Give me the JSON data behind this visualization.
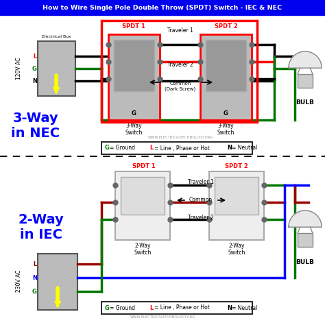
{
  "title": "How to Wire Single Pole Double Throw (SPDT) Switch - IEC & NEC",
  "title_bg": "#0000EE",
  "title_color": "#FFFFFF",
  "bg_color": "#FFFFFF",
  "colors": {
    "black": "#000000",
    "red": "#FF0000",
    "green": "#22AA00",
    "darkgreen": "#007700",
    "yellow": "#FFFF00",
    "blue": "#0000FF",
    "darkred": "#8B0000",
    "maroon": "#990000",
    "gray": "#888888",
    "lightgray": "#CCCCCC",
    "midgray": "#AAAAAA",
    "darkgray": "#666666",
    "white": "#FFFFFF",
    "elecbox": "#BBBBBB",
    "switchfill": "#BBBBBB",
    "switchinner": "#999999"
  },
  "website": "WWW.ELECTRICALTECHNOLOGY.ORG",
  "nec_label1": "3-Way",
  "nec_label2": "in NEC",
  "iec_label1": "2-Way",
  "iec_label2": "in IEC",
  "nec_voltage": "120V AC",
  "iec_voltage": "230V AC",
  "bulb_label": "BULB",
  "electrical_box_label": "Electrical Box",
  "spdt1_label": "SPDT 1",
  "spdt2_label": "SPDT 2",
  "traveler1_label": "Traveler 1",
  "traveler2_label": "Traveler 2",
  "common_label_nec": "Common\n(Dark Screw)",
  "common_label_iec": "Common",
  "switch1_label": "3-Way\nSwitch",
  "switch2_label": "3-Way\nSwitch",
  "switch1b_label": "2-Way\nSwitch",
  "switch2b_label": "2-Way\nSwitch",
  "g_color": "#007700",
  "l_color": "#FF0000",
  "n_color": "#000000"
}
